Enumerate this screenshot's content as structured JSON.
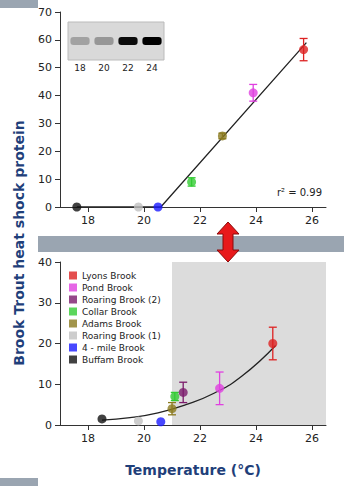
{
  "chart_data": [
    {
      "type": "scatter",
      "ylabel": "Brook Trout heat shock protein",
      "xlim": [
        17,
        26.5
      ],
      "xticks": [
        18,
        20,
        22,
        24,
        26
      ],
      "ylim": [
        0,
        70
      ],
      "yticks": [
        0,
        10,
        20,
        30,
        40,
        50,
        60,
        70
      ],
      "grid": false,
      "annotation": "r² = 0.99",
      "inset": {
        "labels": [
          18,
          20,
          22,
          24
        ],
        "band_intensity": [
          0.25,
          0.3,
          0.95,
          1
        ]
      },
      "series": [
        {
          "type": "scatter",
          "marker": "circle",
          "x": [
            17.6,
            19.8,
            20.5,
            21.7,
            22.8,
            23.9,
            25.7
          ],
          "values": [
            0,
            0,
            0,
            9,
            25.5,
            41,
            56.5
          ],
          "errors": [
            0,
            0,
            0,
            1.5,
            1,
            3,
            4
          ],
          "colors": [
            "#111111",
            "#c0c0c0",
            "#1a1aff",
            "#33cc33",
            "#8b7a1f",
            "#e040e0",
            "#dd2222"
          ]
        },
        {
          "type": "line",
          "line_style": "solid",
          "color": "#222222",
          "x": [
            17.6,
            20.6,
            25.8
          ],
          "values": [
            0,
            0,
            59
          ]
        }
      ]
    },
    {
      "type": "scatter",
      "xlabel": "Temperature (°C)",
      "xlim": [
        17,
        26.5
      ],
      "xticks": [
        18,
        20,
        22,
        24,
        26
      ],
      "ylim": [
        0,
        40
      ],
      "yticks": [
        0,
        10,
        20,
        30,
        40
      ],
      "grid": false,
      "legend": "upper left",
      "shaded_from": 21,
      "series": [
        {
          "name": "Lyons Brook",
          "color": "#dd2222",
          "x": [
            24.6
          ],
          "values": [
            20
          ],
          "errors": [
            4
          ]
        },
        {
          "name": "Pond Brook",
          "color": "#e040e0",
          "x": [
            22.7
          ],
          "values": [
            9
          ],
          "errors": [
            4
          ]
        },
        {
          "name": "Roaring Brook (2)",
          "color": "#7b1a6b",
          "x": [
            21.4
          ],
          "values": [
            8
          ],
          "errors": [
            2.5
          ]
        },
        {
          "name": "Collar Brook",
          "color": "#33cc33",
          "x": [
            21.1
          ],
          "values": [
            7
          ],
          "errors": [
            1
          ]
        },
        {
          "name": "Adams Brook",
          "color": "#8b7a1f",
          "x": [
            21
          ],
          "values": [
            4
          ],
          "errors": [
            1.5
          ]
        },
        {
          "name": "Roaring Brook (1)",
          "color": "#c0c0c0",
          "x": [
            19.8
          ],
          "values": [
            1
          ],
          "errors": [
            0
          ]
        },
        {
          "name": "4 - mile Brook",
          "color": "#1a1aff",
          "x": [
            20.6
          ],
          "values": [
            0.8
          ],
          "errors": [
            0
          ]
        },
        {
          "name": "Buffam Brook",
          "color": "#111111",
          "x": [
            18.5
          ],
          "values": [
            1.5
          ],
          "errors": [
            0
          ]
        },
        {
          "type": "line",
          "line_style": "smooth",
          "color": "#222222",
          "x": [
            18.5,
            19.5,
            20.5,
            21.5,
            22.5,
            23.5,
            24.7
          ],
          "values": [
            1.2,
            1.8,
            3,
            5,
            7.8,
            12,
            19.5
          ]
        }
      ]
    }
  ]
}
